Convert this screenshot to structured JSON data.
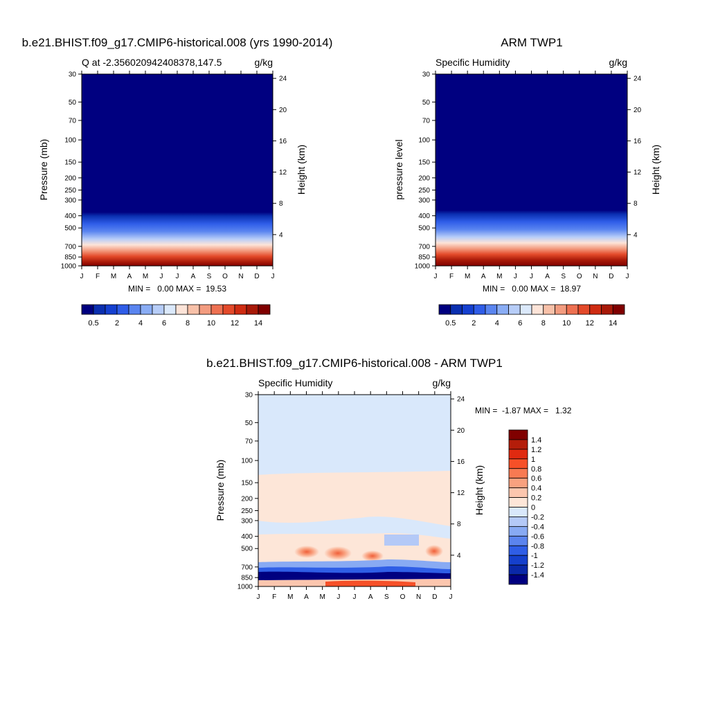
{
  "chart_data": [
    {
      "id": "model",
      "type": "heatmap",
      "title": "b.e21.BHIST.f09_g17.CMIP6-historical.008 (yrs 1990-2014)",
      "left_subtitle": "Q at -2.356020942408378,147.5",
      "right_subtitle": "g/kg",
      "ylabel": "Pressure (mb)",
      "ylabel_right": "Height (km)",
      "stats": "MIN =   0.00 MAX =  19.53",
      "min": 0.0,
      "max": 19.53,
      "months": [
        "J",
        "F",
        "M",
        "A",
        "M",
        "J",
        "J",
        "A",
        "S",
        "O",
        "N",
        "D",
        "J"
      ],
      "pressure_ticks": [
        30,
        50,
        70,
        100,
        150,
        200,
        250,
        300,
        400,
        500,
        700,
        850,
        1000
      ],
      "height_ticks": [
        24,
        20,
        16,
        12,
        8,
        4
      ],
      "colorbar_labels": [
        "0.5",
        "2",
        "4",
        "6",
        "8",
        "10",
        "12",
        "14"
      ],
      "colorbar_colors": [
        "#000080",
        "#0a2fb0",
        "#1540d0",
        "#2f5de8",
        "#5a85f0",
        "#8aadf5",
        "#b7cdf8",
        "#dbe9fb",
        "#fde4d8",
        "#f8c1a9",
        "#f39c80",
        "#ee7152",
        "#e44a2a",
        "#cf2c12",
        "#a81908",
        "#800000"
      ]
    },
    {
      "id": "obs",
      "type": "heatmap",
      "title": "ARM TWP1",
      "left_subtitle": "Specific Humidity",
      "right_subtitle": "g/kg",
      "ylabel": "pressure level",
      "ylabel_right": "Height (km)",
      "stats": "MIN =   0.00 MAX =  18.97",
      "min": 0.0,
      "max": 18.97,
      "months": [
        "J",
        "F",
        "M",
        "A",
        "M",
        "J",
        "J",
        "A",
        "S",
        "O",
        "N",
        "D",
        "J"
      ],
      "pressure_ticks": [
        30,
        50,
        70,
        100,
        150,
        200,
        250,
        300,
        400,
        500,
        700,
        850,
        1000
      ],
      "height_ticks": [
        24,
        20,
        16,
        12,
        8,
        4
      ],
      "colorbar_labels": [
        "0.5",
        "2",
        "4",
        "6",
        "8",
        "10",
        "12",
        "14"
      ],
      "colorbar_colors": [
        "#000080",
        "#0a2fb0",
        "#1540d0",
        "#2f5de8",
        "#5a85f0",
        "#8aadf5",
        "#b7cdf8",
        "#dbe9fb",
        "#fde4d8",
        "#f8c1a9",
        "#f39c80",
        "#ee7152",
        "#e44a2a",
        "#cf2c12",
        "#a81908",
        "#800000"
      ]
    },
    {
      "id": "diff",
      "type": "heatmap",
      "title": "b.e21.BHIST.f09_g17.CMIP6-historical.008 - ARM TWP1",
      "left_subtitle": "Specific Humidity",
      "right_subtitle": "g/kg",
      "ylabel": "Pressure (mb)",
      "ylabel_right": "Height (km)",
      "stats": "MIN =  -1.87 MAX =   1.32",
      "min": -1.87,
      "max": 1.32,
      "months": [
        "J",
        "F",
        "M",
        "A",
        "M",
        "J",
        "J",
        "A",
        "S",
        "O",
        "N",
        "D",
        "J"
      ],
      "pressure_ticks": [
        30,
        50,
        70,
        100,
        150,
        200,
        250,
        300,
        400,
        500,
        700,
        850,
        1000
      ],
      "height_ticks": [
        24,
        20,
        16,
        12,
        8,
        4
      ],
      "colorbar_labels": [
        "1.4",
        "1.2",
        "1",
        "0.8",
        "0.6",
        "0.4",
        "0.2",
        "0",
        "-0.2",
        "-0.4",
        "-0.6",
        "-0.8",
        "-1",
        "-1.2",
        "-1.4"
      ],
      "colorbar_colors": [
        "#800000",
        "#b41d0a",
        "#e02a10",
        "#f65028",
        "#f87a52",
        "#f9a17f",
        "#fcc6ae",
        "#fde6d8",
        "#d9e8fb",
        "#b4c9f7",
        "#88aaf3",
        "#5b84ee",
        "#2f5ee6",
        "#1540cc",
        "#0a28a8",
        "#000080"
      ]
    }
  ]
}
